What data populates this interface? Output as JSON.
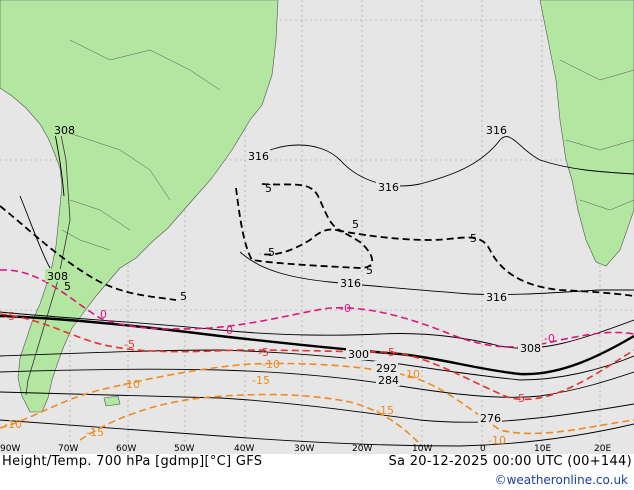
{
  "title": {
    "left": "Height/Temp. 700 hPa [gdmp][°C] GFS",
    "right": "Sa 20-12-2025 00:00 UTC (00+144)"
  },
  "credit": "©weatheronline.co.uk",
  "lon_ticks": [
    "90W",
    "70W",
    "60W",
    "50W",
    "40W",
    "30W",
    "20W",
    "10W",
    "0",
    "10E",
    "20E"
  ],
  "height_labels": [
    "308",
    "316",
    "316",
    "316",
    "308",
    "316",
    "316",
    "300",
    "292",
    "284",
    "276",
    "308"
  ],
  "temp_labels": [
    "5",
    "5",
    "5",
    "5",
    "5",
    "5",
    "-5",
    "0",
    "-0",
    "0",
    "-0",
    "-5",
    "-5",
    "-5",
    "-10",
    "-10",
    "-5",
    "-15",
    "-15",
    "-10",
    "-10",
    "-15",
    "-10",
    "5"
  ],
  "colors": {
    "ocean": "#e6e6e6",
    "land": "#b3e6a1",
    "height_contour": "#000000",
    "temp_pos": "#000000",
    "temp_zero": "#e0157f",
    "temp_m5": "#e8332a",
    "temp_m10": "#f08a1c",
    "credit": "#1a3fa8"
  }
}
